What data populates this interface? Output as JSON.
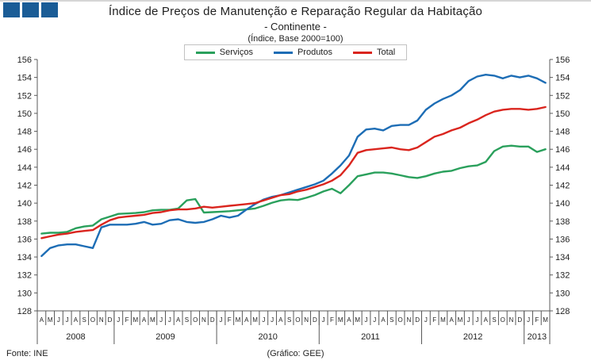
{
  "title": {
    "line1": "Índice de Preços de Manutenção e Reparação Regular da Habitação",
    "line2": "- Continente -",
    "line3": "(Índice, Base 2000=100)"
  },
  "legend": {
    "items": [
      {
        "label": "Serviços",
        "color": "#2aa05c"
      },
      {
        "label": "Produtos",
        "color": "#1d6db5"
      },
      {
        "label": "Total",
        "color": "#da251e"
      }
    ]
  },
  "footer": {
    "source": "Fonte: INE",
    "credit": "(Gráfico: GEE)"
  },
  "logo_color": "#1a5c96",
  "axis_color": "#595959",
  "chart_data": {
    "type": "line",
    "title": "Índice de Preços de Manutenção e Reparação Regular da Habitação - Continente (Índice, Base 2000=100)",
    "ylim": [
      128,
      156
    ],
    "ytick_step": 2,
    "grid": false,
    "legend_position": "top-center",
    "x_months": [
      "A",
      "M",
      "J",
      "J",
      "A",
      "S",
      "O",
      "N",
      "D",
      "J",
      "F",
      "M",
      "A",
      "M",
      "J",
      "J",
      "A",
      "S",
      "O",
      "N",
      "D",
      "J",
      "F",
      "M",
      "A",
      "M",
      "J",
      "J",
      "A",
      "S",
      "O",
      "N",
      "D",
      "J",
      "F",
      "M",
      "A",
      "M",
      "J",
      "J",
      "A",
      "S",
      "O",
      "N",
      "D",
      "J",
      "F",
      "M",
      "A",
      "M",
      "J",
      "J",
      "A",
      "S",
      "O",
      "N",
      "D",
      "J",
      "F",
      "M"
    ],
    "years": [
      {
        "label": "2008",
        "months": 9
      },
      {
        "label": "2009",
        "months": 12
      },
      {
        "label": "2010",
        "months": 12
      },
      {
        "label": "2011",
        "months": 12
      },
      {
        "label": "2012",
        "months": 12
      },
      {
        "label": "2013",
        "months": 3
      }
    ],
    "series": [
      {
        "name": "Serviços",
        "color": "#2aa05c",
        "values": [
          136.6,
          136.7,
          136.7,
          136.8,
          137.2,
          137.4,
          137.5,
          138.2,
          138.5,
          138.8,
          138.85,
          138.9,
          139.0,
          139.2,
          139.25,
          139.25,
          139.4,
          140.3,
          140.45,
          138.95,
          139.0,
          139.05,
          139.1,
          139.2,
          139.3,
          139.4,
          139.7,
          140.05,
          140.3,
          140.4,
          140.35,
          140.6,
          140.9,
          141.3,
          141.6,
          141.1,
          142.0,
          143.0,
          143.2,
          143.4,
          143.4,
          143.3,
          143.1,
          142.9,
          142.8,
          143.0,
          143.3,
          143.5,
          143.6,
          143.9,
          144.1,
          144.2,
          144.6,
          145.8,
          146.3,
          146.4,
          146.3,
          146.3,
          145.7,
          146.0
        ]
      },
      {
        "name": "Produtos",
        "color": "#1d6db5",
        "values": [
          134.1,
          135.0,
          135.3,
          135.4,
          135.4,
          135.2,
          135.0,
          137.3,
          137.6,
          137.6,
          137.6,
          137.7,
          137.9,
          137.6,
          137.7,
          138.1,
          138.2,
          137.9,
          137.8,
          137.9,
          138.2,
          138.6,
          138.4,
          138.6,
          139.3,
          139.9,
          140.4,
          140.7,
          140.9,
          141.2,
          141.5,
          141.8,
          142.1,
          142.5,
          143.3,
          144.2,
          145.3,
          147.4,
          148.2,
          148.3,
          148.1,
          148.6,
          148.7,
          148.7,
          149.2,
          150.4,
          151.1,
          151.6,
          152.0,
          152.6,
          153.6,
          154.1,
          154.3,
          154.2,
          153.9,
          154.2,
          154.0,
          154.2,
          153.9,
          153.4
        ]
      },
      {
        "name": "Total",
        "color": "#da251e",
        "values": [
          136.1,
          136.3,
          136.5,
          136.6,
          136.8,
          136.9,
          137.0,
          137.6,
          138.1,
          138.4,
          138.5,
          138.6,
          138.7,
          138.9,
          139.0,
          139.2,
          139.3,
          139.3,
          139.4,
          139.6,
          139.5,
          139.6,
          139.7,
          139.8,
          139.9,
          140.0,
          140.3,
          140.6,
          140.9,
          141.0,
          141.3,
          141.5,
          141.8,
          142.1,
          142.5,
          143.1,
          144.2,
          145.6,
          145.9,
          146.0,
          146.1,
          146.2,
          146.0,
          145.9,
          146.2,
          146.8,
          147.4,
          147.7,
          148.1,
          148.4,
          148.9,
          149.3,
          149.8,
          150.2,
          150.4,
          150.5,
          150.5,
          150.4,
          150.5,
          150.7
        ]
      }
    ]
  }
}
